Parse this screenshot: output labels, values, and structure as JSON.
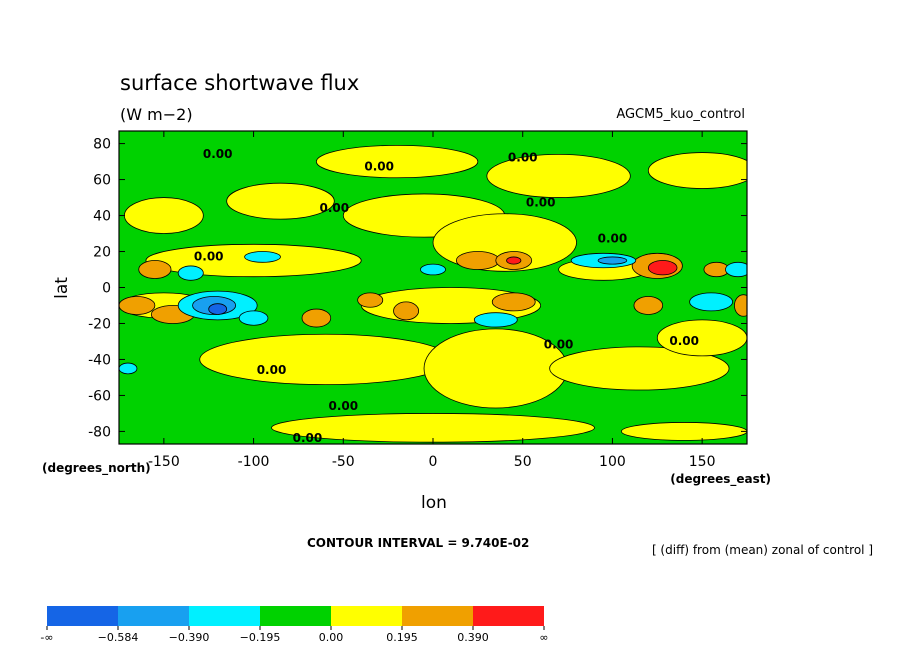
{
  "chart_data": {
    "type": "heatmap",
    "title": "surface shortwave flux",
    "units": "(W m−2)",
    "run_name": "AGCM5_kuo_control",
    "xlabel": "lon",
    "ylabel": "lat",
    "x_unit_label": "(degrees_east)",
    "y_unit_label": "(degrees_north)",
    "xlim": [
      -175,
      175
    ],
    "ylim": [
      -87,
      87
    ],
    "x_ticks": [
      -150,
      -100,
      -50,
      0,
      50,
      100,
      150
    ],
    "y_ticks": [
      80,
      60,
      40,
      20,
      0,
      -20,
      -40,
      -60,
      -80
    ],
    "contour_interval_text": "CONTOUR INTERVAL = 9.740E-02",
    "diff_note": "[ (diff) from (mean) zonal of control ]",
    "contour_label": "0.00",
    "colorbar": {
      "labels": [
        "-∞",
        "−0.584",
        "−0.390",
        "−0.195",
        "0.00",
        "0.195",
        "0.390",
        "∞"
      ],
      "colors": [
        "#1565e6",
        "#18a0f0",
        "#00f0ff",
        "#00d200",
        "#ffff00",
        "#f0a000",
        "#ff1a1a"
      ]
    },
    "background_color": "#00d200",
    "features": [
      {
        "level": "positive",
        "color": "#ffff00",
        "lon": -150,
        "lat": 40,
        "rx": 22,
        "ry": 10
      },
      {
        "level": "positive",
        "color": "#ffff00",
        "lon": -85,
        "lat": 48,
        "rx": 30,
        "ry": 10
      },
      {
        "level": "positive",
        "color": "#ffff00",
        "lon": -5,
        "lat": 40,
        "rx": 45,
        "ry": 12
      },
      {
        "level": "positive",
        "color": "#ffff00",
        "lon": -20,
        "lat": 70,
        "rx": 45,
        "ry": 9
      },
      {
        "level": "positive",
        "color": "#ffff00",
        "lon": 70,
        "lat": 62,
        "rx": 40,
        "ry": 12
      },
      {
        "level": "positive",
        "color": "#ffff00",
        "lon": 150,
        "lat": 65,
        "rx": 30,
        "ry": 10
      },
      {
        "level": "positive",
        "color": "#ffff00",
        "lon": 40,
        "lat": 25,
        "rx": 40,
        "ry": 16
      },
      {
        "level": "positive",
        "color": "#ffff00",
        "lon": -100,
        "lat": 15,
        "rx": 60,
        "ry": 9
      },
      {
        "level": "positive",
        "color": "#ffff00",
        "lon": 10,
        "lat": -10,
        "rx": 50,
        "ry": 10
      },
      {
        "level": "positive",
        "color": "#ffff00",
        "lon": -60,
        "lat": -40,
        "rx": 70,
        "ry": 14
      },
      {
        "level": "positive",
        "color": "#ffff00",
        "lon": 35,
        "lat": -45,
        "rx": 40,
        "ry": 22
      },
      {
        "level": "positive",
        "color": "#ffff00",
        "lon": 115,
        "lat": -45,
        "rx": 50,
        "ry": 12
      },
      {
        "level": "positive",
        "color": "#ffff00",
        "lon": 150,
        "lat": -28,
        "rx": 25,
        "ry": 10
      },
      {
        "level": "positive",
        "color": "#ffff00",
        "lon": 0,
        "lat": -78,
        "rx": 90,
        "ry": 8
      },
      {
        "level": "positive",
        "color": "#ffff00",
        "lon": 140,
        "lat": -80,
        "rx": 35,
        "ry": 5
      },
      {
        "level": "positive",
        "color": "#ffff00",
        "lon": -150,
        "lat": -10,
        "rx": 25,
        "ry": 7
      },
      {
        "level": "positive",
        "color": "#ffff00",
        "lon": 95,
        "lat": 10,
        "rx": 25,
        "ry": 6
      },
      {
        "level": "high",
        "color": "#f0a000",
        "lon": -155,
        "lat": 10,
        "rx": 9,
        "ry": 5
      },
      {
        "level": "high",
        "color": "#f0a000",
        "lon": -165,
        "lat": -10,
        "rx": 10,
        "ry": 5
      },
      {
        "level": "high",
        "color": "#f0a000",
        "lon": -145,
        "lat": -15,
        "rx": 12,
        "ry": 5
      },
      {
        "level": "high",
        "color": "#f0a000",
        "lon": -65,
        "lat": -17,
        "rx": 8,
        "ry": 5
      },
      {
        "level": "high",
        "color": "#f0a000",
        "lon": -35,
        "lat": -7,
        "rx": 7,
        "ry": 4
      },
      {
        "level": "high",
        "color": "#f0a000",
        "lon": -15,
        "lat": -13,
        "rx": 7,
        "ry": 5
      },
      {
        "level": "high",
        "color": "#f0a000",
        "lon": 25,
        "lat": 15,
        "rx": 12,
        "ry": 5
      },
      {
        "level": "high",
        "color": "#f0a000",
        "lon": 45,
        "lat": 15,
        "rx": 10,
        "ry": 5
      },
      {
        "level": "high",
        "color": "#f0a000",
        "lon": 45,
        "lat": -8,
        "rx": 12,
        "ry": 5
      },
      {
        "level": "high",
        "color": "#f0a000",
        "lon": 125,
        "lat": 12,
        "rx": 14,
        "ry": 7
      },
      {
        "level": "high",
        "color": "#f0a000",
        "lon": 158,
        "lat": 10,
        "rx": 7,
        "ry": 4
      },
      {
        "level": "high",
        "color": "#f0a000",
        "lon": 120,
        "lat": -10,
        "rx": 8,
        "ry": 5
      },
      {
        "level": "high",
        "color": "#f0a000",
        "lon": 173,
        "lat": -10,
        "rx": 5,
        "ry": 6
      },
      {
        "level": "highest",
        "color": "#ff1a1a",
        "lon": 128,
        "lat": 11,
        "rx": 8,
        "ry": 4
      },
      {
        "level": "highest",
        "color": "#ff1a1a",
        "lon": 45,
        "lat": 15,
        "rx": 4,
        "ry": 2
      },
      {
        "level": "low",
        "color": "#00f0ff",
        "lon": -135,
        "lat": 8,
        "rx": 7,
        "ry": 4
      },
      {
        "level": "low",
        "color": "#00f0ff",
        "lon": -95,
        "lat": 17,
        "rx": 10,
        "ry": 3
      },
      {
        "level": "low",
        "color": "#00f0ff",
        "lon": -120,
        "lat": -10,
        "rx": 22,
        "ry": 8
      },
      {
        "level": "low",
        "color": "#00f0ff",
        "lon": -100,
        "lat": -17,
        "rx": 8,
        "ry": 4
      },
      {
        "level": "low",
        "color": "#00f0ff",
        "lon": -170,
        "lat": -45,
        "rx": 5,
        "ry": 3
      },
      {
        "level": "low",
        "color": "#00f0ff",
        "lon": 0,
        "lat": 10,
        "rx": 7,
        "ry": 3
      },
      {
        "level": "low",
        "color": "#00f0ff",
        "lon": 35,
        "lat": -18,
        "rx": 12,
        "ry": 4
      },
      {
        "level": "low",
        "color": "#00f0ff",
        "lon": 95,
        "lat": 15,
        "rx": 18,
        "ry": 4
      },
      {
        "level": "low",
        "color": "#00f0ff",
        "lon": 155,
        "lat": -8,
        "rx": 12,
        "ry": 5
      },
      {
        "level": "low",
        "color": "#00f0ff",
        "lon": 170,
        "lat": 10,
        "rx": 7,
        "ry": 4
      },
      {
        "level": "lower",
        "color": "#18a0f0",
        "lon": -122,
        "lat": -10,
        "rx": 12,
        "ry": 5
      },
      {
        "level": "lower",
        "color": "#18a0f0",
        "lon": 100,
        "lat": 15,
        "rx": 8,
        "ry": 2
      },
      {
        "level": "lowest",
        "color": "#1565e6",
        "lon": -120,
        "lat": -12,
        "rx": 5,
        "ry": 3
      }
    ],
    "contour_label_positions": [
      {
        "lon": -120,
        "lat": 72
      },
      {
        "lon": -30,
        "lat": 65
      },
      {
        "lon": 50,
        "lat": 70
      },
      {
        "lon": 60,
        "lat": 45
      },
      {
        "lon": 100,
        "lat": 25
      },
      {
        "lon": -55,
        "lat": 42
      },
      {
        "lon": -125,
        "lat": 15
      },
      {
        "lon": 140,
        "lat": -32
      },
      {
        "lon": 70,
        "lat": -34
      },
      {
        "lon": -90,
        "lat": -48
      },
      {
        "lon": -50,
        "lat": -68
      },
      {
        "lon": -70,
        "lat": -86
      }
    ]
  }
}
